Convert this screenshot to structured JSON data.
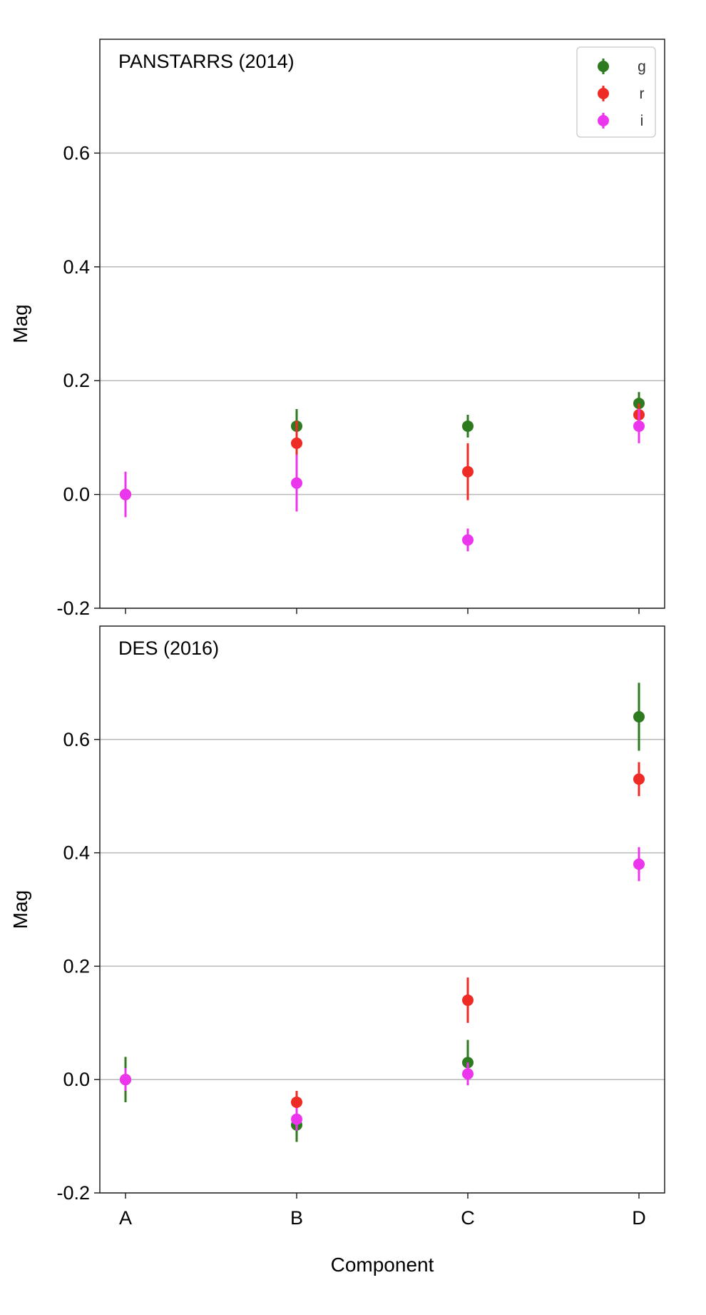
{
  "chart_data": [
    {
      "type": "scatter",
      "title": "PANSTARRS (2014)",
      "xlabel": "",
      "ylabel": "Mag",
      "categories": [
        "A",
        "B",
        "C",
        "D"
      ],
      "ylim": [
        -0.2,
        0.8
      ],
      "yticks": [
        "-0.2",
        "0.0",
        "0.2",
        "0.4",
        "0.6"
      ],
      "grid": true,
      "legend_position": "top-right",
      "series": [
        {
          "name": "g",
          "color": "#2d7a1f",
          "values": [
            0.0,
            0.12,
            0.12,
            0.16
          ],
          "errors": [
            0.02,
            0.03,
            0.02,
            0.02
          ]
        },
        {
          "name": "r",
          "color": "#ee2b24",
          "values": [
            0.0,
            0.09,
            0.04,
            0.14
          ],
          "errors": [
            0.02,
            0.04,
            0.05,
            0.02
          ]
        },
        {
          "name": "i",
          "color": "#ec36ee",
          "values": [
            0.0,
            0.02,
            -0.08,
            0.12
          ],
          "errors": [
            0.04,
            0.05,
            0.02,
            0.03
          ]
        }
      ]
    },
    {
      "type": "scatter",
      "title": "DES (2016)",
      "xlabel": "Component",
      "ylabel": "Mag",
      "categories": [
        "A",
        "B",
        "C",
        "D"
      ],
      "ylim": [
        -0.2,
        0.8
      ],
      "yticks": [
        "-0.2",
        "0.0",
        "0.2",
        "0.4",
        "0.6"
      ],
      "grid": true,
      "series": [
        {
          "name": "g",
          "color": "#2d7a1f",
          "values": [
            0.0,
            -0.08,
            0.03,
            0.64
          ],
          "errors": [
            0.04,
            0.03,
            0.04,
            0.06
          ]
        },
        {
          "name": "r",
          "color": "#ee2b24",
          "values": [
            0.0,
            -0.04,
            0.14,
            0.53
          ],
          "errors": [
            0.01,
            0.02,
            0.04,
            0.03
          ]
        },
        {
          "name": "i",
          "color": "#ec36ee",
          "values": [
            0.0,
            -0.07,
            0.01,
            0.38
          ],
          "errors": [
            0.02,
            0.02,
            0.02,
            0.03
          ]
        }
      ]
    }
  ]
}
